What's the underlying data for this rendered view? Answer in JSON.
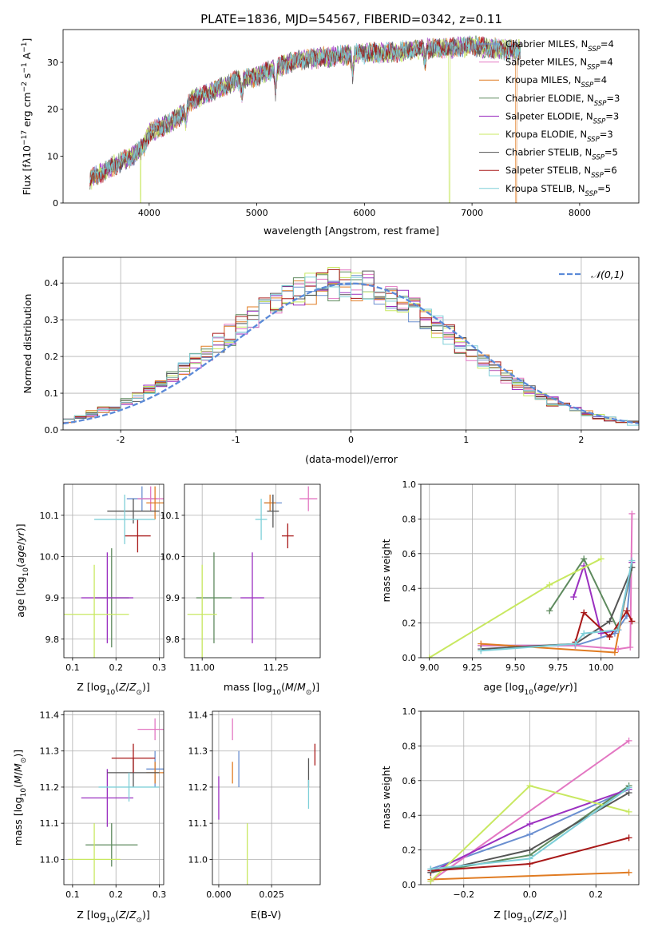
{
  "chart_data": [
    {
      "type": "line",
      "title": "PLATE=1836, MJD=54567, FIBERID=0342, z=0.11",
      "xlabel": "wavelength [Angstrom, rest frame]",
      "ylabel": "Flux [fλ10⁻¹⁷ erg cm⁻² s⁻¹ A⁻¹]",
      "xlim": [
        3200,
        8550
      ],
      "ylim": [
        0,
        37
      ],
      "xticks": [
        4000,
        5000,
        6000,
        7000,
        8000
      ],
      "yticks": [
        0,
        10,
        20,
        30
      ],
      "grid": false,
      "legend_position": "right",
      "series": [
        {
          "name": "Chabrier MILES, N_SSP=4",
          "color": "#6a8fd0"
        },
        {
          "name": "Salpeter MILES, N_SSP=4",
          "color": "#e377c2"
        },
        {
          "name": "Kroupa MILES, N_SSP=4",
          "color": "#e07b22"
        },
        {
          "name": "Chabrier ELODIE, N_SSP=3",
          "color": "#5e8a5e"
        },
        {
          "name": "Salpeter ELODIE, N_SSP=3",
          "color": "#9b30c0"
        },
        {
          "name": "Kroupa ELODIE, N_SSP=3",
          "color": "#c8e860"
        },
        {
          "name": "Chabrier STELIB, N_SSP=5",
          "color": "#555555"
        },
        {
          "name": "Salpeter STELIB, N_SSP=6",
          "color": "#a81818"
        },
        {
          "name": "Kroupa STELIB, N_SSP=5",
          "color": "#7ecfd8"
        }
      ],
      "continuum": {
        "x": [
          3450,
          3600,
          3750,
          3850,
          3950,
          4000,
          4100,
          4200,
          4300,
          4400,
          4600,
          4800,
          5000,
          5200,
          5400,
          5600,
          5800,
          6000,
          6200,
          6400,
          6600,
          6800,
          7000,
          7200,
          7400
        ],
        "y": [
          5,
          7,
          9,
          10,
          12,
          15,
          16,
          17,
          19,
          22,
          24,
          26,
          27,
          29,
          30.5,
          31,
          31.5,
          32,
          32,
          32.5,
          33,
          33,
          33.5,
          33,
          32.5
        ]
      },
      "dips": [
        {
          "x": 4340,
          "depth": 3
        },
        {
          "x": 4861,
          "depth": 3
        },
        {
          "x": 5175,
          "depth": 5
        },
        {
          "x": 5890,
          "depth": 4
        },
        {
          "x": 6563,
          "depth": 3
        }
      ],
      "drops": [
        {
          "x": 3920,
          "color": "#c8e860"
        },
        {
          "x": 6790,
          "color": "#c8e860"
        },
        {
          "x": 7410,
          "color": "#e07b22"
        }
      ],
      "x_start": 3450,
      "x_end": 7450
    },
    {
      "type": "step",
      "xlabel": "(data-model)/error",
      "ylabel": "Normed distribution",
      "xlim": [
        -2.5,
        2.5
      ],
      "ylim": [
        0,
        0.47
      ],
      "xticks": [
        -2,
        -1,
        0,
        1,
        2
      ],
      "yticks": [
        0.0,
        0.1,
        0.2,
        0.3,
        0.4
      ],
      "grid": true,
      "legend_position": "top-right",
      "reference": {
        "name": "𝒩(0,1)",
        "mean": 0,
        "std": 1,
        "color": "#5b8ad8",
        "style": "dashed"
      },
      "bin_width": 0.1,
      "bin_start": -2.5
    },
    {
      "type": "errorbar",
      "xlabel": "Z [log10(Z/Z⊙)]",
      "ylabel": "age  [log10(age/yr)]",
      "xlim": [
        0.08,
        0.31
      ],
      "ylim": [
        9.755,
        10.175
      ],
      "xticks": [
        0.1,
        0.2,
        0.3
      ],
      "yticks": [
        9.8,
        9.9,
        10.0,
        10.1
      ],
      "grid": true,
      "points": [
        {
          "x": 0.26,
          "y": 10.14,
          "xerr": 0.035,
          "yerr": 0.03,
          "color": "#6a8fd0"
        },
        {
          "x": 0.28,
          "y": 10.14,
          "xerr": 0.03,
          "yerr": 0.03,
          "color": "#e377c2"
        },
        {
          "x": 0.29,
          "y": 10.13,
          "xerr": 0.02,
          "yerr": 0.04,
          "color": "#e07b22"
        },
        {
          "x": 0.19,
          "y": 9.9,
          "xerr": 0.04,
          "yerr": 0.12,
          "color": "#5e8a5e"
        },
        {
          "x": 0.18,
          "y": 9.9,
          "xerr": 0.06,
          "yerr": 0.11,
          "color": "#9b30c0"
        },
        {
          "x": 0.15,
          "y": 9.86,
          "xerr": 0.08,
          "yerr": 0.12,
          "color": "#c8e860"
        },
        {
          "x": 0.24,
          "y": 10.11,
          "xerr": 0.06,
          "yerr": 0.03,
          "color": "#555555"
        },
        {
          "x": 0.25,
          "y": 10.05,
          "xerr": 0.03,
          "yerr": 0.04,
          "color": "#a81818"
        },
        {
          "x": 0.22,
          "y": 10.09,
          "xerr": 0.07,
          "yerr": 0.06,
          "color": "#7ecfd8"
        }
      ]
    },
    {
      "type": "errorbar",
      "xlabel": "mass [log10(M/M⊙)]",
      "ylabel": "",
      "xlim": [
        10.94,
        11.4
      ],
      "ylim": [
        9.755,
        10.175
      ],
      "xticks": [
        11.0,
        11.25
      ],
      "yticks": [
        9.8,
        9.9,
        10.0,
        10.1
      ],
      "grid": true,
      "points": [
        {
          "x": 11.24,
          "y": 10.13,
          "xerr": 0.03,
          "yerr": 0.02,
          "color": "#6a8fd0"
        },
        {
          "x": 11.36,
          "y": 10.14,
          "xerr": 0.03,
          "yerr": 0.03,
          "color": "#e377c2"
        },
        {
          "x": 11.23,
          "y": 10.13,
          "xerr": 0.02,
          "yerr": 0.02,
          "color": "#e07b22"
        },
        {
          "x": 11.04,
          "y": 9.9,
          "xerr": 0.06,
          "yerr": 0.11,
          "color": "#5e8a5e"
        },
        {
          "x": 11.17,
          "y": 9.9,
          "xerr": 0.04,
          "yerr": 0.11,
          "color": "#9b30c0"
        },
        {
          "x": 11.0,
          "y": 9.86,
          "xerr": 0.05,
          "yerr": 0.12,
          "color": "#c8e860"
        },
        {
          "x": 11.24,
          "y": 10.11,
          "xerr": 0.02,
          "yerr": 0.04,
          "color": "#555555"
        },
        {
          "x": 11.29,
          "y": 10.05,
          "xerr": 0.02,
          "yerr": 0.03,
          "color": "#a81818"
        },
        {
          "x": 11.2,
          "y": 10.09,
          "xerr": 0.02,
          "yerr": 0.05,
          "color": "#7ecfd8"
        }
      ]
    },
    {
      "type": "line",
      "xlabel": "age  [log10(age/yr)]",
      "ylabel": "mass weight",
      "xlim": [
        8.95,
        10.22
      ],
      "ylim": [
        0,
        1.0
      ],
      "xticks": [
        9.0,
        9.25,
        9.5,
        9.75,
        10.0
      ],
      "xticklabels": [
        "9.00",
        "9.25",
        "9.50",
        "9.75",
        "10.00"
      ],
      "yticks": [
        0.0,
        0.2,
        0.4,
        0.6,
        0.8,
        1.0
      ],
      "grid": true,
      "series": [
        {
          "color": "#6a8fd0",
          "x": [
            9.3,
            9.85,
            10.08,
            10.15,
            10.18
          ],
          "y": [
            0.07,
            0.07,
            0.14,
            0.24,
            0.55
          ]
        },
        {
          "color": "#e377c2",
          "x": [
            9.3,
            9.85,
            10.1,
            10.17,
            10.18
          ],
          "y": [
            0.07,
            0.07,
            0.05,
            0.06,
            0.83
          ]
        },
        {
          "color": "#e07b22",
          "x": [
            9.3,
            10.08,
            10.18
          ],
          "y": [
            0.08,
            0.03,
            0.55
          ]
        },
        {
          "color": "#5e8a5e",
          "x": [
            9.7,
            9.9,
            10.1,
            10.18
          ],
          "y": [
            0.27,
            0.57,
            0.16,
            0.52
          ]
        },
        {
          "color": "#9b30c0",
          "x": [
            9.84,
            9.9,
            10.0,
            10.1,
            10.18
          ],
          "y": [
            0.35,
            0.53,
            0.14,
            0.16,
            0.55
          ]
        },
        {
          "color": "#c8e860",
          "x": [
            9.0,
            9.7,
            10.0
          ],
          "y": [
            0.0,
            0.42,
            0.57
          ]
        },
        {
          "color": "#555555",
          "x": [
            9.3,
            9.85,
            10.05,
            10.18
          ],
          "y": [
            0.05,
            0.08,
            0.21,
            0.52
          ]
        },
        {
          "color": "#a81818",
          "x": [
            9.85,
            9.9,
            10.05,
            10.15,
            10.18
          ],
          "y": [
            0.09,
            0.26,
            0.12,
            0.27,
            0.21
          ]
        },
        {
          "color": "#7ecfd8",
          "x": [
            9.3,
            9.85,
            9.9,
            10.1,
            10.18
          ],
          "y": [
            0.04,
            0.08,
            0.14,
            0.16,
            0.56
          ]
        }
      ]
    },
    {
      "type": "errorbar",
      "xlabel": "Z [log10(Z/Z⊙)]",
      "ylabel": "mass [log10(M/M⊙)]",
      "xlim": [
        0.08,
        0.31
      ],
      "ylim": [
        10.93,
        11.41
      ],
      "xticks": [
        0.1,
        0.2,
        0.3
      ],
      "yticks": [
        11.0,
        11.1,
        11.2,
        11.3,
        11.4
      ],
      "grid": true,
      "points": [
        {
          "x": 0.29,
          "y": 11.25,
          "xerr": 0.02,
          "yerr": 0.05,
          "color": "#6a8fd0"
        },
        {
          "x": 0.29,
          "y": 11.36,
          "xerr": 0.04,
          "yerr": 0.03,
          "color": "#e377c2"
        },
        {
          "x": 0.29,
          "y": 11.24,
          "xerr": 0.02,
          "yerr": 0.03,
          "color": "#e07b22"
        },
        {
          "x": 0.19,
          "y": 11.04,
          "xerr": 0.06,
          "yerr": 0.06,
          "color": "#5e8a5e"
        },
        {
          "x": 0.18,
          "y": 11.17,
          "xerr": 0.06,
          "yerr": 0.08,
          "color": "#9b30c0"
        },
        {
          "x": 0.15,
          "y": 11.0,
          "xerr": 0.06,
          "yerr": 0.1,
          "color": "#c8e860"
        },
        {
          "x": 0.24,
          "y": 11.24,
          "xerr": 0.06,
          "yerr": 0.04,
          "color": "#555555"
        },
        {
          "x": 0.24,
          "y": 11.28,
          "xerr": 0.05,
          "yerr": 0.04,
          "color": "#a81818"
        },
        {
          "x": 0.23,
          "y": 11.2,
          "xerr": 0.07,
          "yerr": 0.04,
          "color": "#7ecfd8"
        }
      ]
    },
    {
      "type": "errorbar",
      "xlabel": "E(B-V)",
      "ylabel": "",
      "xlim": [
        -0.003,
        0.048
      ],
      "ylim": [
        10.93,
        11.41
      ],
      "xticks": [
        0.0,
        0.025
      ],
      "xticklabels": [
        "0.000",
        "0.025"
      ],
      "yticks": [
        11.0,
        11.1,
        11.2,
        11.3,
        11.4
      ],
      "grid": true,
      "points": [
        {
          "x": 0.0095,
          "y": 11.25,
          "xerr": 0,
          "yerr": 0.05,
          "color": "#6a8fd0"
        },
        {
          "x": 0.0065,
          "y": 11.36,
          "xerr": 0,
          "yerr": 0.03,
          "color": "#e377c2"
        },
        {
          "x": 0.0065,
          "y": 11.24,
          "xerr": 0,
          "yerr": 0.03,
          "color": "#e07b22"
        },
        {
          "x": 0.0425,
          "y": 11.24,
          "xerr": 0,
          "yerr": 0.04,
          "color": "#555555"
        },
        {
          "x": 0.0,
          "y": 11.17,
          "xerr": 0,
          "yerr": 0.06,
          "color": "#9b30c0"
        },
        {
          "x": 0.0135,
          "y": 11.0,
          "xerr": 0,
          "yerr": 0.1,
          "color": "#c8e860"
        },
        {
          "x": 0.0455,
          "y": 11.29,
          "xerr": 0,
          "yerr": 0.03,
          "color": "#a81818"
        },
        {
          "x": 0.0425,
          "y": 11.18,
          "xerr": 0,
          "yerr": 0.04,
          "color": "#7ecfd8"
        }
      ]
    },
    {
      "type": "line",
      "xlabel": "Z [log10(Z/Z⊙)]",
      "ylabel": "mass weight",
      "xlim": [
        -0.33,
        0.33
      ],
      "ylim": [
        0,
        1.0
      ],
      "xticks": [
        -0.2,
        0.0,
        0.2
      ],
      "xticklabels": [
        "−0.2",
        "0.0",
        "0.2"
      ],
      "yticks": [
        0.0,
        0.2,
        0.4,
        0.6,
        0.8,
        1.0
      ],
      "grid": true,
      "series": [
        {
          "color": "#6a8fd0",
          "x": [
            -0.3,
            0.0,
            0.3
          ],
          "y": [
            0.09,
            0.29,
            0.55
          ]
        },
        {
          "color": "#e377c2",
          "x": [
            -0.3,
            0.3
          ],
          "y": [
            0.02,
            0.83
          ]
        },
        {
          "color": "#e07b22",
          "x": [
            -0.3,
            0.3
          ],
          "y": [
            0.03,
            0.07
          ]
        },
        {
          "color": "#5e8a5e",
          "x": [
            -0.3,
            0.0,
            0.3
          ],
          "y": [
            0.07,
            0.17,
            0.57
          ]
        },
        {
          "color": "#9b30c0",
          "x": [
            -0.3,
            0.0,
            0.3
          ],
          "y": [
            0.07,
            0.35,
            0.55
          ]
        },
        {
          "color": "#c8e860",
          "x": [
            -0.3,
            0.0,
            0.3
          ],
          "y": [
            0.02,
            0.57,
            0.42
          ]
        },
        {
          "color": "#555555",
          "x": [
            -0.3,
            0.0,
            0.3
          ],
          "y": [
            0.07,
            0.2,
            0.53
          ]
        },
        {
          "color": "#a81818",
          "x": [
            -0.3,
            0.0,
            0.3
          ],
          "y": [
            0.08,
            0.12,
            0.27
          ]
        },
        {
          "color": "#7ecfd8",
          "x": [
            -0.3,
            0.0,
            0.3
          ],
          "y": [
            0.09,
            0.15,
            0.56
          ]
        }
      ]
    }
  ]
}
